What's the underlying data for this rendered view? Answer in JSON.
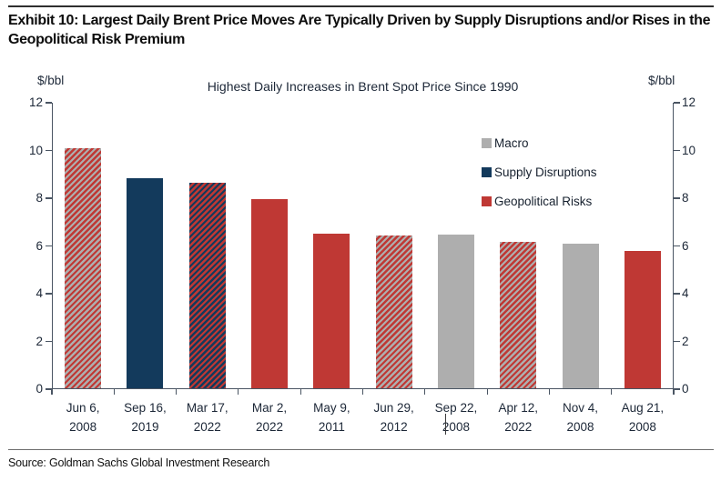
{
  "exhibit": {
    "title": "Exhibit 10: Largest Daily Brent Price Moves Are Typically Driven by Supply Disruptions and/or Rises in the Geopolitical Risk Premium"
  },
  "source": {
    "text": "Source: Goldman Sachs Global Investment Research"
  },
  "chart_data": {
    "type": "bar",
    "title": "Highest Daily Increases in Brent Spot Price Since 1990",
    "ylabel_left": "$/bbl",
    "ylabel_right": "$/bbl",
    "ylim": [
      0,
      12
    ],
    "yticks": [
      0,
      2,
      4,
      6,
      8,
      10,
      12
    ],
    "grid": false,
    "legend_position": "upper-right-inside",
    "colors": {
      "macro": "#aeaeae",
      "supply": "#133a5c",
      "geo": "#bf3834",
      "axis": "#4a5563",
      "text": "#1c2737"
    },
    "legend": [
      {
        "label": "Macro",
        "color_key": "macro"
      },
      {
        "label": "Supply Disruptions",
        "color_key": "supply"
      },
      {
        "label": "Geopolitical Risks",
        "color_key": "geo"
      }
    ],
    "bars": [
      {
        "date_line1": "Jun 6,",
        "date_line2": "2008",
        "value": 10.06,
        "fill": {
          "base": "macro",
          "stripe": "geo"
        }
      },
      {
        "date_line1": "Sep 16,",
        "date_line2": "2019",
        "value": 8.8,
        "fill": {
          "base": "supply"
        }
      },
      {
        "date_line1": "Mar 17,",
        "date_line2": "2022",
        "value": 8.61,
        "fill": {
          "base": "supply",
          "stripe": "geo"
        }
      },
      {
        "date_line1": "Mar 2,",
        "date_line2": "2022",
        "value": 7.92,
        "fill": {
          "base": "geo"
        }
      },
      {
        "date_line1": "May 9,",
        "date_line2": "2011",
        "value": 6.48,
        "fill": {
          "base": "geo"
        }
      },
      {
        "date_line1": "Jun 29,",
        "date_line2": "2012",
        "value": 6.4,
        "fill": {
          "base": "macro",
          "stripe": "geo"
        }
      },
      {
        "date_line1": "Sep 22,",
        "date_line2": "2008",
        "value": 6.44,
        "fill": {
          "base": "macro"
        }
      },
      {
        "date_line1": "Apr 12,",
        "date_line2": "2022",
        "value": 6.13,
        "fill": {
          "base": "macro",
          "stripe": "geo"
        }
      },
      {
        "date_line1": "Nov 4,",
        "date_line2": "2008",
        "value": 6.06,
        "fill": {
          "base": "macro"
        }
      },
      {
        "date_line1": "Aug 21,",
        "date_line2": "2008",
        "value": 5.75,
        "fill": {
          "base": "geo"
        }
      }
    ]
  }
}
